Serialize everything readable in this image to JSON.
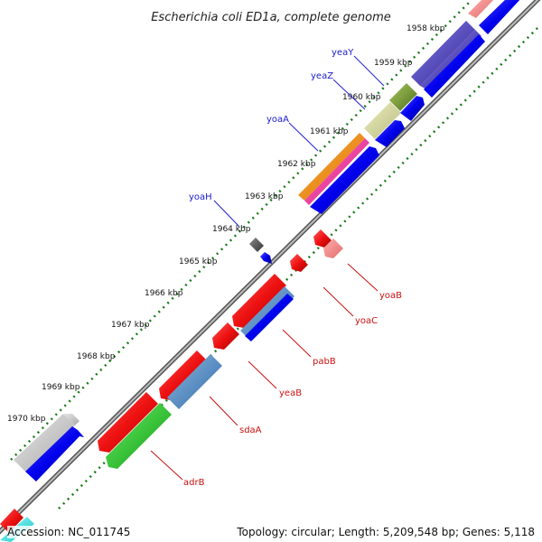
{
  "title": "Escherichia coli ED1a, complete genome",
  "footer": {
    "accession": "Accession: NC_011745",
    "topology": "Topology: circular; Length: 5,209,548 bp; Genes: 5,118"
  },
  "kbp_labels": [
    "1958 kbp",
    "1959 kbp",
    "1960 kbp",
    "1961 kbp",
    "1962 kbp",
    "1963 kbp",
    "1964 kbp",
    "1965 kbp",
    "1966 kbp",
    "1967 kbp",
    "1968 kbp",
    "1969 kbp",
    "1970 kbp"
  ],
  "forward_labels": [
    "yeaY",
    "yeaZ",
    "yoaA",
    "yoaH"
  ],
  "reverse_labels": [
    "yoaB",
    "yoaC",
    "pabB",
    "yeaB",
    "sdaA",
    "adrB"
  ],
  "colors": {
    "backbone": "#8a8a8a",
    "tick_dots": "#1a7a1a",
    "forward_text": "#1a1acc",
    "reverse_text": "#cc1111",
    "cds_blue": "#0000ee",
    "gene_red": "#ee1111"
  }
}
